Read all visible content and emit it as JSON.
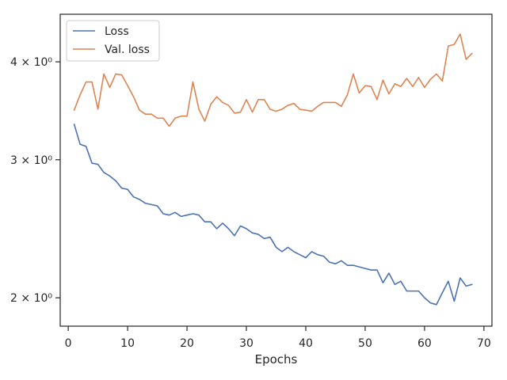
{
  "chart_data": {
    "type": "line",
    "title": "",
    "xlabel": "Epochs",
    "ylabel": "",
    "xlim": [
      -1.35,
      71.35
    ],
    "ylim": [
      1.84,
      4.6
    ],
    "yscale": "log",
    "grid": false,
    "legend": "top-left",
    "x_ticks": [
      0,
      10,
      20,
      30,
      40,
      50,
      60,
      70
    ],
    "y_ticks": [
      {
        "value": 2,
        "label": "2 × 10⁰"
      },
      {
        "value": 3,
        "label": "3 × 10⁰"
      },
      {
        "value": 4,
        "label": "4 × 10⁰"
      }
    ],
    "series": [
      {
        "name": "Loss",
        "color": "#4c72b0",
        "x": [
          1,
          2,
          3,
          4,
          5,
          6,
          7,
          8,
          9,
          10,
          11,
          12,
          13,
          14,
          15,
          16,
          17,
          18,
          19,
          20,
          21,
          22,
          23,
          24,
          25,
          26,
          27,
          28,
          29,
          30,
          31,
          32,
          33,
          34,
          35,
          36,
          37,
          38,
          39,
          40,
          41,
          42,
          43,
          44,
          45,
          46,
          47,
          48,
          49,
          50,
          51,
          52,
          53,
          54,
          55,
          56,
          57,
          58,
          59,
          60,
          61,
          62,
          63,
          64,
          65,
          66,
          67,
          68
        ],
        "values": [
          3.33,
          3.14,
          3.12,
          2.97,
          2.96,
          2.89,
          2.86,
          2.82,
          2.76,
          2.75,
          2.69,
          2.67,
          2.64,
          2.63,
          2.62,
          2.56,
          2.55,
          2.57,
          2.54,
          2.55,
          2.56,
          2.55,
          2.5,
          2.5,
          2.45,
          2.49,
          2.45,
          2.4,
          2.47,
          2.45,
          2.42,
          2.41,
          2.38,
          2.39,
          2.32,
          2.29,
          2.32,
          2.29,
          2.27,
          2.25,
          2.29,
          2.27,
          2.26,
          2.22,
          2.21,
          2.23,
          2.2,
          2.2,
          2.19,
          2.18,
          2.17,
          2.17,
          2.09,
          2.15,
          2.08,
          2.1,
          2.04,
          2.04,
          2.04,
          2.0,
          1.97,
          1.96,
          2.03,
          2.1,
          1.98,
          2.12,
          2.07,
          2.08
        ]
      },
      {
        "name": "Val. loss",
        "color": "#dd8452",
        "x": [
          1,
          2,
          3,
          4,
          5,
          6,
          7,
          8,
          9,
          10,
          11,
          12,
          13,
          14,
          15,
          16,
          17,
          18,
          19,
          20,
          21,
          22,
          23,
          24,
          25,
          26,
          27,
          28,
          29,
          30,
          31,
          32,
          33,
          34,
          35,
          36,
          37,
          38,
          39,
          40,
          41,
          42,
          43,
          44,
          45,
          46,
          47,
          48,
          49,
          50,
          51,
          52,
          53,
          54,
          55,
          56,
          57,
          58,
          59,
          60,
          61,
          62,
          63,
          64,
          65,
          66,
          67,
          68
        ],
        "values": [
          3.47,
          3.63,
          3.77,
          3.77,
          3.48,
          3.86,
          3.71,
          3.86,
          3.85,
          3.73,
          3.61,
          3.47,
          3.43,
          3.43,
          3.39,
          3.39,
          3.31,
          3.39,
          3.41,
          3.41,
          3.77,
          3.48,
          3.36,
          3.53,
          3.61,
          3.55,
          3.52,
          3.44,
          3.45,
          3.58,
          3.45,
          3.58,
          3.58,
          3.48,
          3.46,
          3.48,
          3.52,
          3.54,
          3.48,
          3.47,
          3.46,
          3.51,
          3.55,
          3.55,
          3.55,
          3.51,
          3.63,
          3.86,
          3.65,
          3.73,
          3.72,
          3.58,
          3.79,
          3.64,
          3.75,
          3.72,
          3.81,
          3.72,
          3.82,
          3.71,
          3.8,
          3.86,
          3.78,
          4.19,
          4.21,
          4.34,
          4.03,
          4.1
        ]
      }
    ]
  }
}
